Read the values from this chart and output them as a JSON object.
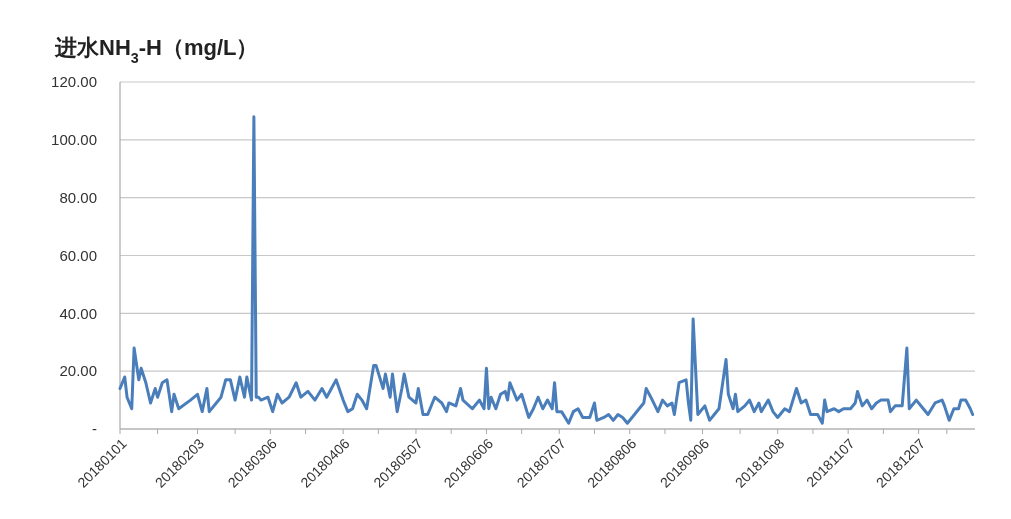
{
  "chart_data": {
    "type": "line",
    "title": "进水NH$_{3}$-H（mg/L）",
    "x": [
      "2018-01-01",
      "2018-01-03",
      "2018-01-04",
      "2018-01-06",
      "2018-01-07",
      "2018-01-09",
      "2018-01-10",
      "2018-01-12",
      "2018-01-14",
      "2018-01-16",
      "2018-01-17",
      "2018-01-19",
      "2018-01-21",
      "2018-01-23",
      "2018-01-24",
      "2018-01-26",
      "2018-01-31",
      "2018-02-03",
      "2018-02-05",
      "2018-02-07",
      "2018-02-08",
      "2018-02-13",
      "2018-02-15",
      "2018-02-17",
      "2018-02-19",
      "2018-02-21",
      "2018-02-23",
      "2018-02-24",
      "2018-02-26",
      "2018-02-27",
      "2018-02-28",
      "2018-03-01",
      "2018-03-02",
      "2018-03-05",
      "2018-03-07",
      "2018-03-09",
      "2018-03-11",
      "2018-03-14",
      "2018-03-17",
      "2018-03-19",
      "2018-03-22",
      "2018-03-25",
      "2018-03-28",
      "2018-03-30",
      "2018-04-01",
      "2018-04-03",
      "2018-04-06",
      "2018-04-08",
      "2018-04-10",
      "2018-04-12",
      "2018-04-14",
      "2018-04-16",
      "2018-04-19",
      "2018-04-20",
      "2018-04-23",
      "2018-04-24",
      "2018-04-26",
      "2018-04-27",
      "2018-04-29",
      "2018-05-01",
      "2018-05-02",
      "2018-05-04",
      "2018-05-07",
      "2018-05-08",
      "2018-05-10",
      "2018-05-12",
      "2018-05-15",
      "2018-05-18",
      "2018-05-20",
      "2018-05-21",
      "2018-05-24",
      "2018-05-26",
      "2018-05-27",
      "2018-05-31",
      "2018-06-03",
      "2018-06-05",
      "2018-06-06",
      "2018-06-07",
      "2018-06-08",
      "2018-06-10",
      "2018-06-12",
      "2018-06-14",
      "2018-06-15",
      "2018-06-16",
      "2018-06-17",
      "2018-06-19",
      "2018-06-21",
      "2018-06-24",
      "2018-06-26",
      "2018-06-28",
      "2018-06-30",
      "2018-07-02",
      "2018-07-04",
      "2018-07-05",
      "2018-07-06",
      "2018-07-08",
      "2018-07-11",
      "2018-07-13",
      "2018-07-15",
      "2018-07-17",
      "2018-07-20",
      "2018-07-22",
      "2018-07-23",
      "2018-07-26",
      "2018-07-28",
      "2018-07-30",
      "2018-08-01",
      "2018-08-03",
      "2018-08-05",
      "2018-08-07",
      "2018-08-10",
      "2018-08-12",
      "2018-08-13",
      "2018-08-15",
      "2018-08-18",
      "2018-08-20",
      "2018-08-22",
      "2018-08-24",
      "2018-08-25",
      "2018-08-27",
      "2018-08-30",
      "2018-08-31",
      "2018-09-01",
      "2018-09-02",
      "2018-09-04",
      "2018-09-07",
      "2018-09-09",
      "2018-09-11",
      "2018-09-13",
      "2018-09-16",
      "2018-09-17",
      "2018-09-19",
      "2018-09-20",
      "2018-09-21",
      "2018-09-24",
      "2018-09-26",
      "2018-09-28",
      "2018-09-30",
      "2018-10-01",
      "2018-10-04",
      "2018-10-06",
      "2018-10-08",
      "2018-10-11",
      "2018-10-13",
      "2018-10-16",
      "2018-10-18",
      "2018-10-20",
      "2018-10-22",
      "2018-10-25",
      "2018-10-27",
      "2018-10-28",
      "2018-10-29",
      "2018-11-01",
      "2018-11-03",
      "2018-11-05",
      "2018-11-08",
      "2018-11-10",
      "2018-11-11",
      "2018-11-13",
      "2018-11-15",
      "2018-11-17",
      "2018-11-19",
      "2018-11-21",
      "2018-11-24",
      "2018-11-25",
      "2018-11-27",
      "2018-11-30",
      "2018-12-02",
      "2018-12-03",
      "2018-12-06",
      "2018-12-09",
      "2018-12-11",
      "2018-12-14",
      "2018-12-17",
      "2018-12-18",
      "2018-12-20",
      "2018-12-22",
      "2018-12-24",
      "2018-12-25",
      "2018-12-27",
      "2018-12-29",
      "2018-12-30"
    ],
    "series": [
      {
        "color": "#4a7ebb",
        "values": [
          14,
          18,
          11,
          7,
          28,
          17,
          21,
          16,
          9,
          14,
          11,
          16,
          17,
          6,
          12,
          7,
          10,
          12,
          6,
          14,
          6,
          11,
          17,
          17,
          10,
          18,
          11,
          18,
          10,
          108,
          11,
          11,
          10,
          11,
          6,
          12,
          9,
          11,
          16,
          11,
          13,
          10,
          14,
          11,
          14,
          17,
          10,
          6,
          7,
          12,
          10,
          7,
          22,
          22,
          14,
          19,
          11,
          19,
          6,
          14,
          19,
          11,
          9,
          14,
          5,
          5,
          11,
          9,
          6,
          9,
          8,
          14,
          10,
          7,
          10,
          7,
          21,
          7,
          11,
          7,
          12,
          13,
          10,
          16,
          14,
          10,
          12,
          4,
          7,
          11,
          7,
          10,
          7,
          16,
          6,
          6,
          2,
          6,
          7,
          4,
          4,
          9,
          3,
          4,
          5,
          3,
          5,
          4,
          2,
          4,
          7,
          9,
          14,
          11,
          6,
          10,
          8,
          9,
          5,
          16,
          17,
          9,
          3,
          38,
          5,
          8,
          3,
          5,
          7,
          24,
          12,
          7,
          12,
          6,
          8,
          10,
          6,
          9,
          6,
          10,
          6,
          4,
          7,
          6,
          14,
          9,
          10,
          5,
          5,
          2,
          10,
          6,
          7,
          6,
          7,
          7,
          9,
          13,
          8,
          10,
          7,
          9,
          10,
          10,
          6,
          8,
          8,
          28,
          7,
          10,
          7,
          5,
          9,
          10,
          8,
          3,
          7,
          7,
          10,
          10,
          7,
          5
        ]
      }
    ],
    "xlim": [
      "2018-01-01",
      "2018-12-31"
    ],
    "xticks": [
      {
        "value": "2018-01-01",
        "label": "20180101"
      },
      {
        "value": "2018-01-17",
        "label": null
      },
      {
        "value": "2018-02-03",
        "label": "20180203"
      },
      {
        "value": "2018-02-19",
        "label": null
      },
      {
        "value": "2018-03-06",
        "label": "20180306"
      },
      {
        "value": "2018-03-21",
        "label": null
      },
      {
        "value": "2018-04-06",
        "label": "20180406"
      },
      {
        "value": "2018-04-21",
        "label": null
      },
      {
        "value": "2018-05-07",
        "label": "20180507"
      },
      {
        "value": "2018-05-22",
        "label": null
      },
      {
        "value": "2018-06-06",
        "label": "20180606"
      },
      {
        "value": "2018-06-21",
        "label": null
      },
      {
        "value": "2018-07-07",
        "label": "20180707"
      },
      {
        "value": "2018-07-22",
        "label": null
      },
      {
        "value": "2018-08-06",
        "label": "20180806"
      },
      {
        "value": "2018-08-21",
        "label": null
      },
      {
        "value": "2018-09-06",
        "label": "20180906"
      },
      {
        "value": "2018-09-22",
        "label": null
      },
      {
        "value": "2018-10-08",
        "label": "20181008"
      },
      {
        "value": "2018-10-23",
        "label": null
      },
      {
        "value": "2018-11-07",
        "label": "20181107"
      },
      {
        "value": "2018-11-22",
        "label": null
      },
      {
        "value": "2018-12-07",
        "label": "20181207"
      },
      {
        "value": "2018-12-19",
        "label": null
      }
    ],
    "ylim": [
      0,
      120
    ],
    "yticks": [
      {
        "value": 0,
        "label": "-"
      },
      {
        "value": 20,
        "label": "20.00"
      },
      {
        "value": 40,
        "label": "40.00"
      },
      {
        "value": 60,
        "label": "60.00"
      },
      {
        "value": 80,
        "label": "80.00"
      },
      {
        "value": 100,
        "label": "100.00"
      },
      {
        "value": 120,
        "label": "120.00"
      }
    ],
    "grid": "y",
    "line_style": "solid",
    "marker": "none"
  }
}
